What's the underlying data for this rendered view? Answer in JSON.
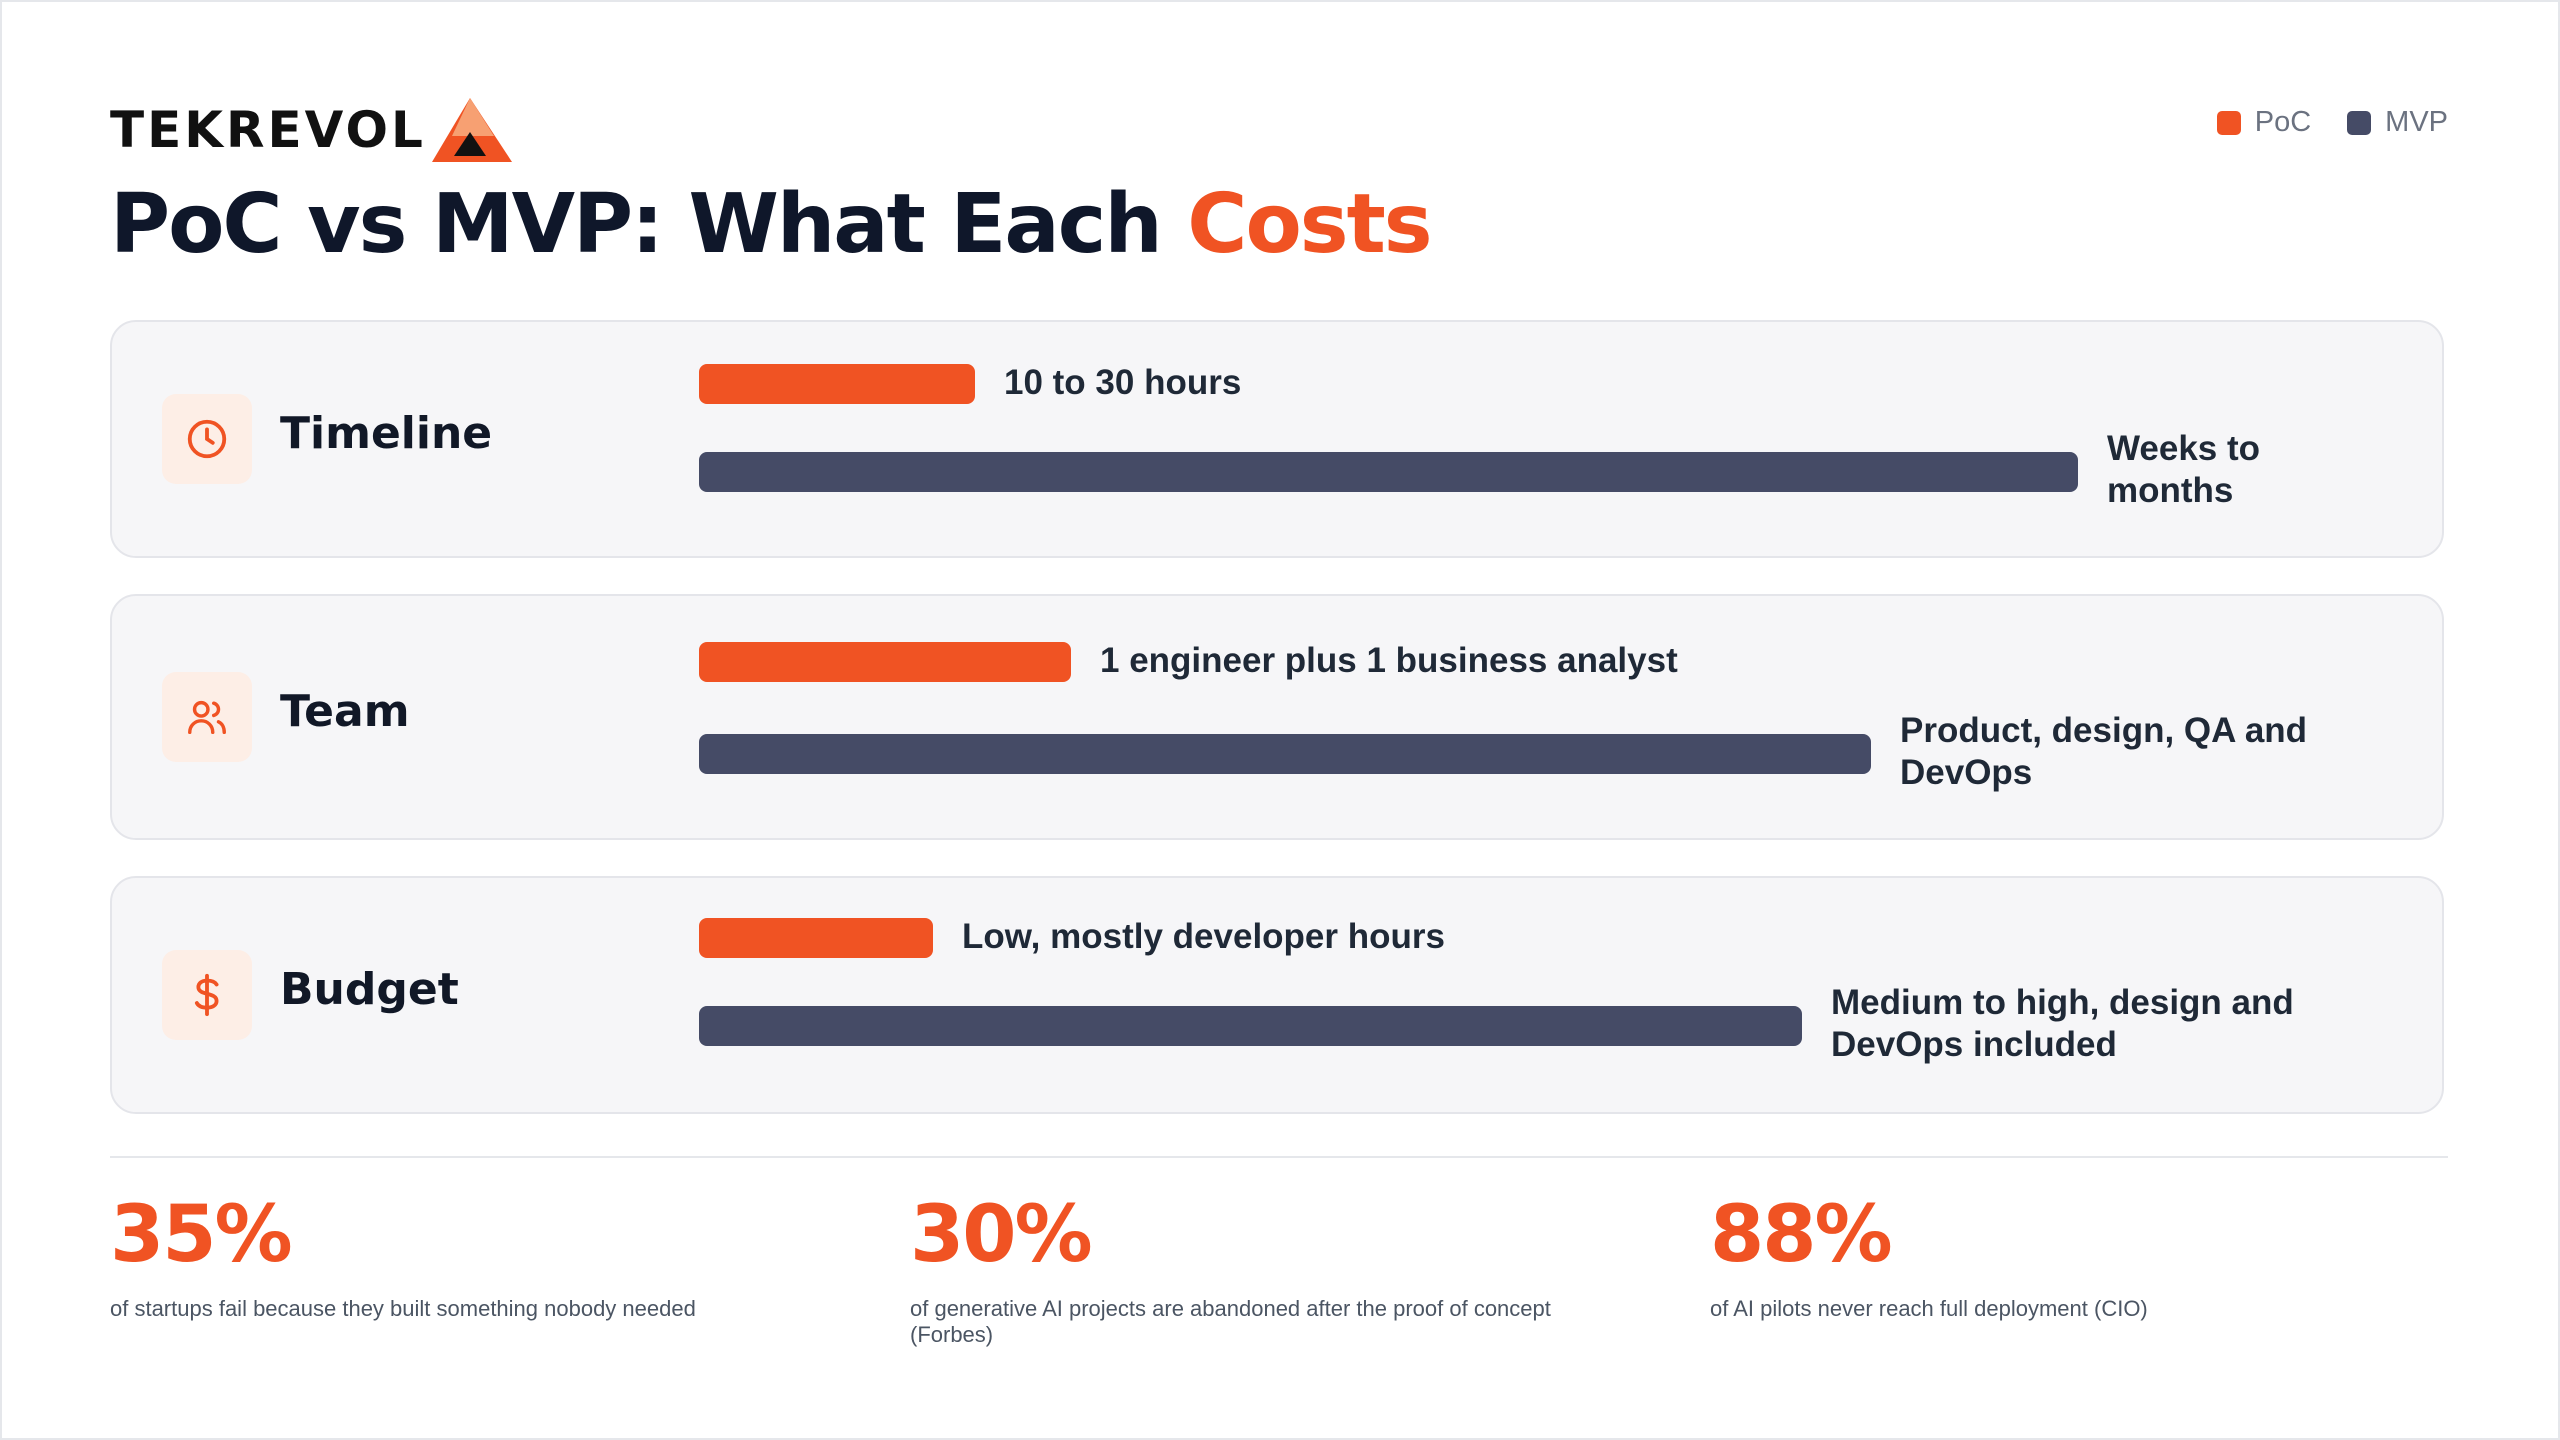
{
  "brand": {
    "logo_text": "TEKREVOL",
    "accent_color": "#f05323",
    "dark_color": "#454b66"
  },
  "header": {
    "title_main": "PoC vs MVP: What Each ",
    "title_accent": "Costs"
  },
  "legend": [
    {
      "name": "PoC",
      "color": "#f05323"
    },
    {
      "name": "MVP",
      "color": "#454b66"
    }
  ],
  "chart_data": {
    "type": "bar",
    "orientation": "horizontal",
    "legend_position": "top-right",
    "grid": false,
    "categories": [
      "Timeline",
      "Team",
      "Budget"
    ],
    "series": [
      {
        "name": "PoC",
        "values": [
          0.2,
          0.27,
          0.17
        ],
        "labels": [
          "10 to 30 hours",
          "1 engineer plus 1 business analyst",
          "Low, mostly developer hours"
        ]
      },
      {
        "name": "MVP",
        "values": [
          1.0,
          0.85,
          0.8
        ],
        "labels": [
          "Weeks to\nmonths",
          "Product, design, QA and\nDevOps",
          "Medium to high, design and\nDevOps included"
        ]
      }
    ],
    "xlim": [
      0,
      1
    ]
  },
  "rows": [
    {
      "label": "Timeline",
      "icon": "clock-icon"
    },
    {
      "label": "Team",
      "icon": "users-icon"
    },
    {
      "label": "Budget",
      "icon": "dollar-icon"
    }
  ],
  "stats": [
    {
      "value": "35%",
      "text": "of startups fail because they built something nobody needed"
    },
    {
      "value": "30%",
      "text": "of generative AI projects are abandoned after the proof of concept (Forbes)"
    },
    {
      "value": "88%",
      "text": "of AI pilots never reach full deployment (CIO)"
    }
  ]
}
